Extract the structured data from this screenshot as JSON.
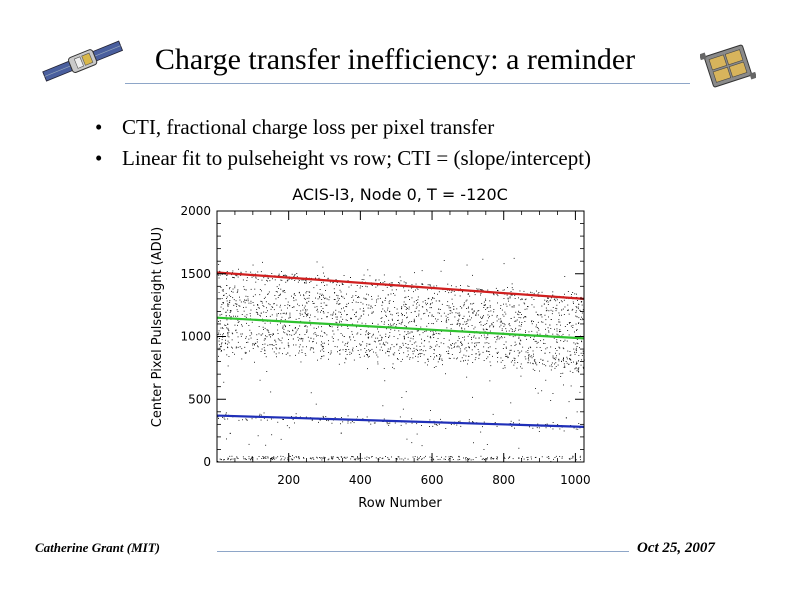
{
  "slide": {
    "title": "Charge transfer inefficiency: a reminder",
    "bullet_symbol": "•",
    "bullets": [
      "CTI, fractional charge loss per pixel transfer",
      "Linear fit to pulseheight vs row; CTI = (slope/intercept)"
    ],
    "footer_left": "Catherine Grant (MIT)",
    "footer_right": "Oct 25, 2007",
    "rule_color": "#8ea6c8",
    "logo_left_icon": "satellite-icon",
    "logo_right_icon": "ccd-chip-icon"
  },
  "chart_data": {
    "type": "scatter",
    "title": "ACIS-I3, Node 0, T = -120C",
    "xlabel": "Row Number",
    "ylabel": "Center Pixel Pulseheight (ADU)",
    "xlim": [
      0,
      1024
    ],
    "ylim": [
      0,
      2000
    ],
    "x_ticks": [
      200,
      400,
      600,
      800,
      1000
    ],
    "y_ticks": [
      0,
      500,
      1000,
      1500,
      2000
    ],
    "grid": false,
    "fit_lines": [
      {
        "color": "#d01f1f",
        "x": [
          0,
          1024
        ],
        "y": [
          1510,
          1300
        ]
      },
      {
        "color": "#2fc22f",
        "x": [
          0,
          1024
        ],
        "y": [
          1150,
          985
        ]
      },
      {
        "color": "#1f2fb8",
        "x": [
          0,
          1024
        ],
        "y": [
          370,
          280
        ]
      }
    ],
    "point_color": "#000000"
  }
}
